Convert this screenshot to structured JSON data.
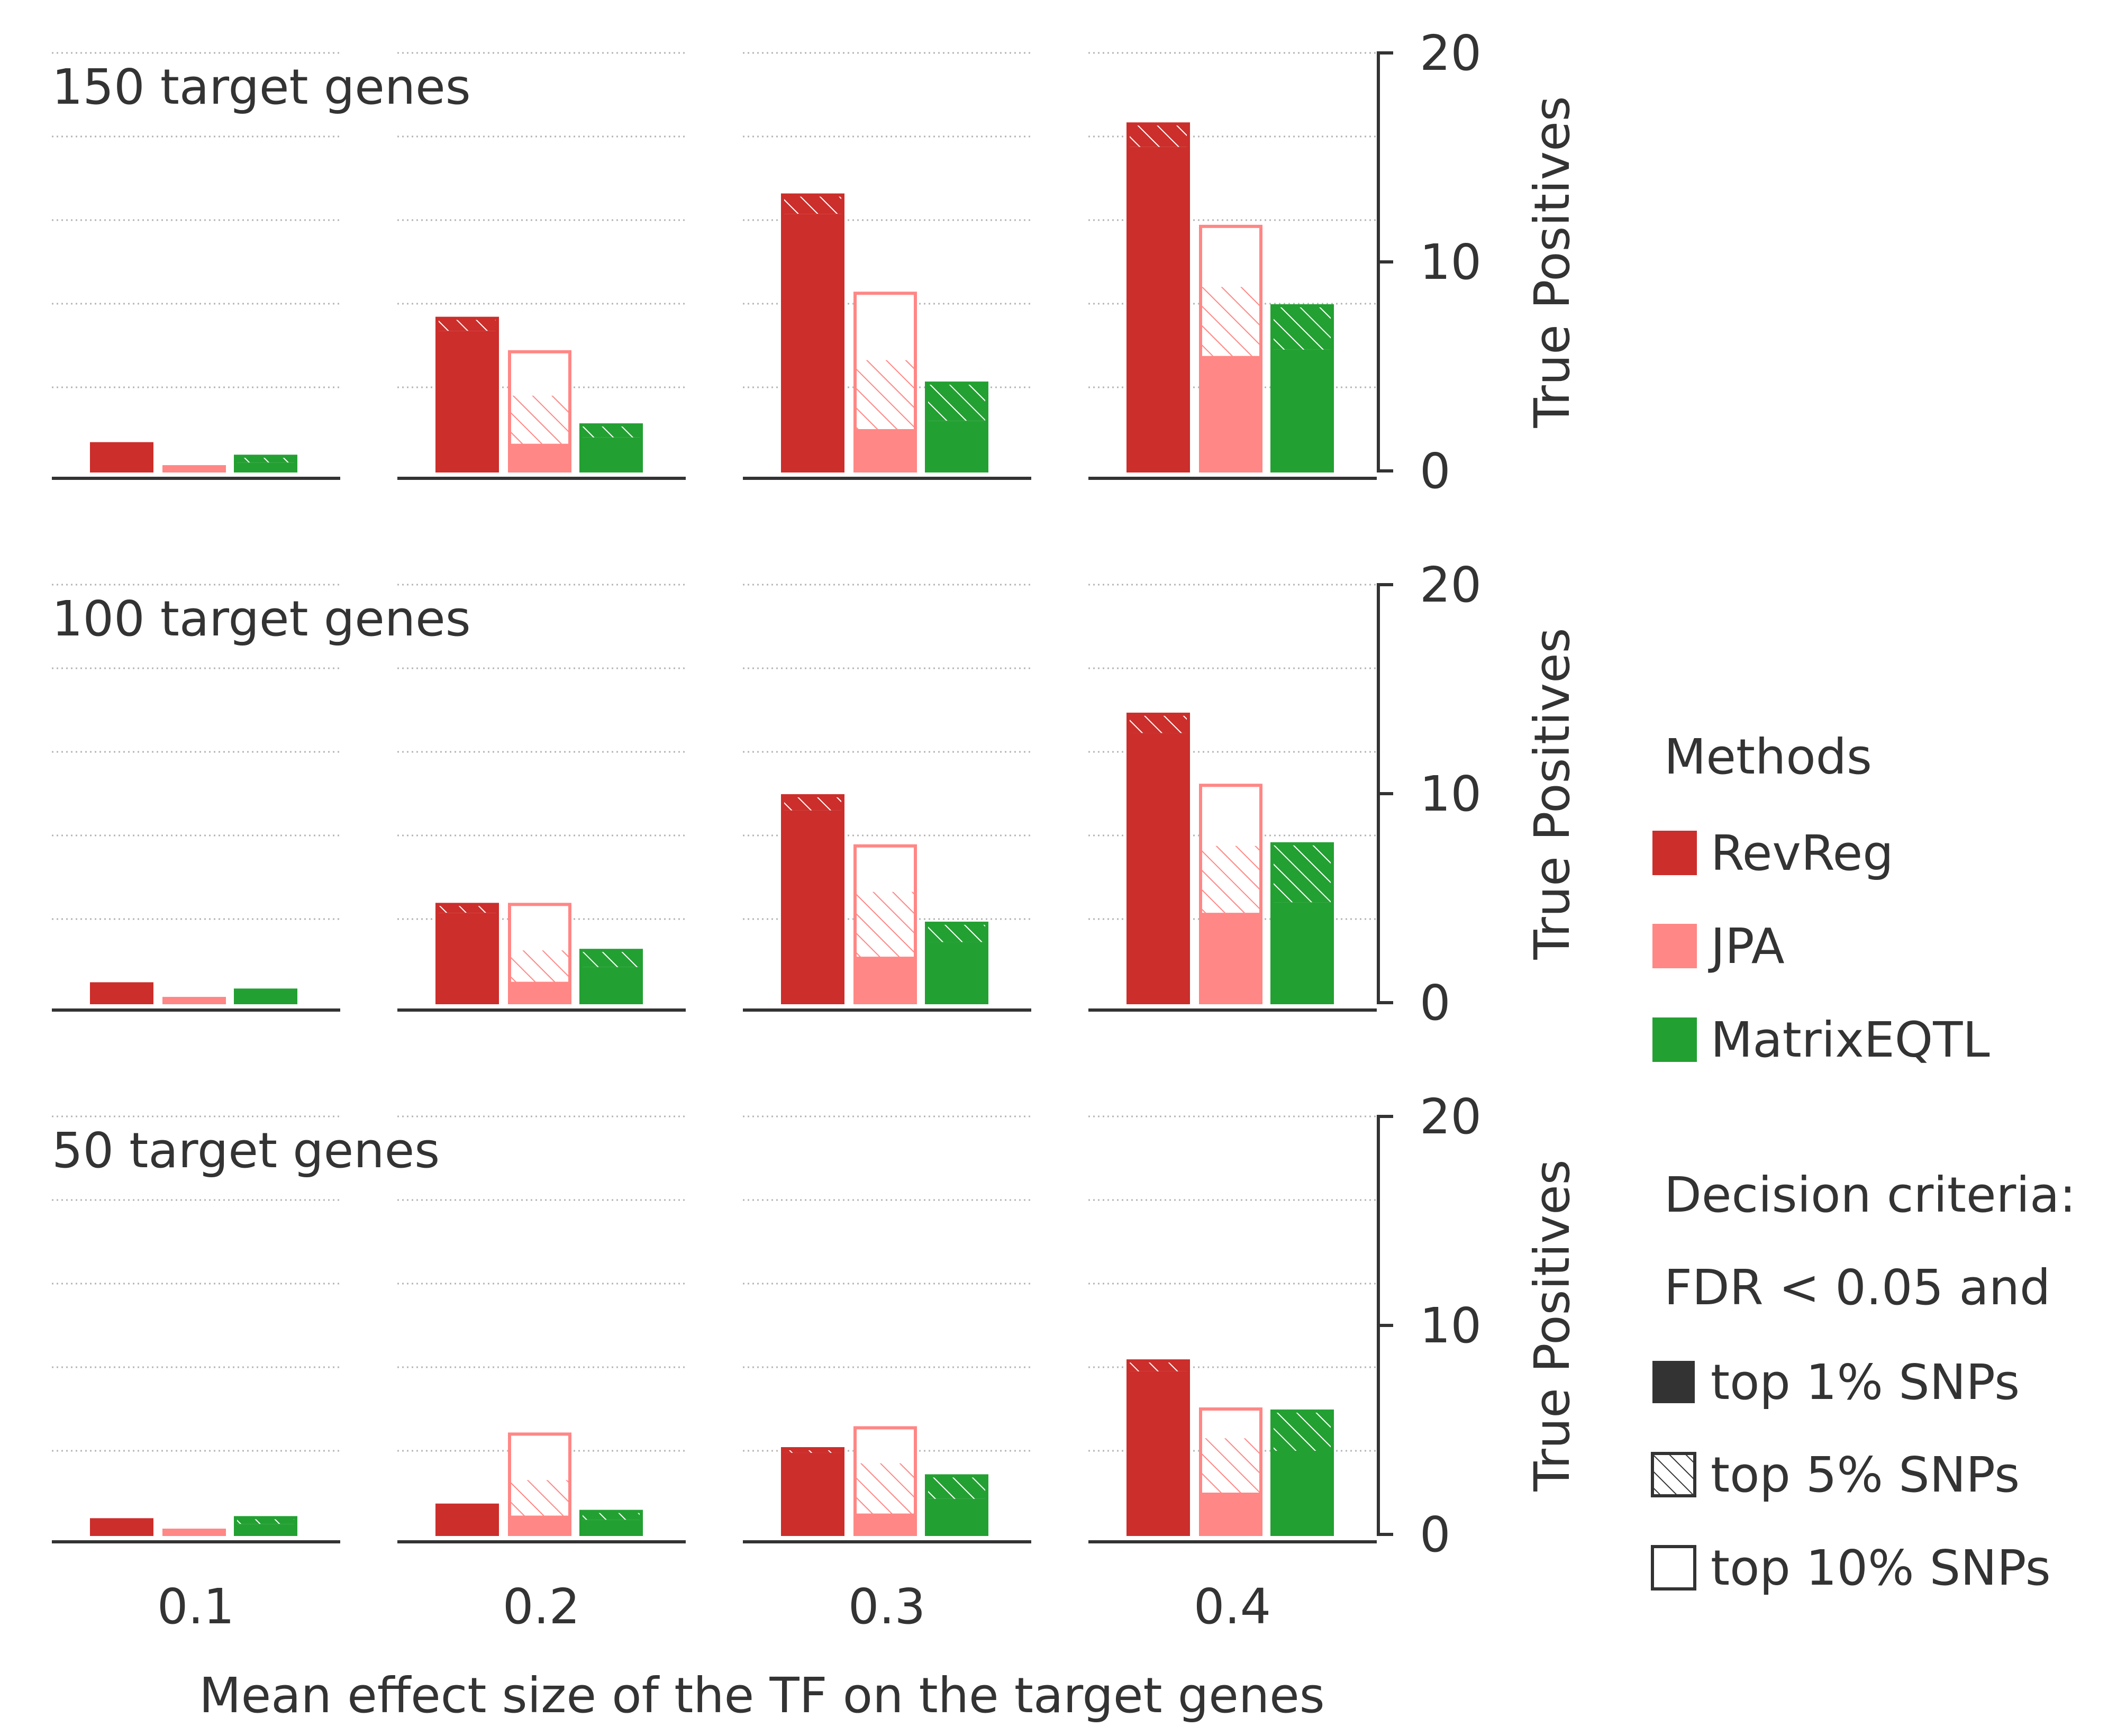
{
  "chart_data": {
    "type": "bar",
    "stacked_criteria": true,
    "x_ticks": [
      "0.1",
      "0.2",
      "0.3",
      "0.4"
    ],
    "xlabel": "Mean effect size of the TF on the target genes",
    "ylabel": "True Positives",
    "ylim": [
      0,
      20
    ],
    "y_ticks": [
      "0",
      "10",
      "20"
    ],
    "grid": "horizontal dotted",
    "colors": {
      "RevReg": "#cc2e2b",
      "JPA": "#ff8785",
      "MatrixEQTL": "#23a032",
      "top1_legend": "#333333"
    },
    "methods": [
      "RevReg",
      "JPA",
      "MatrixEQTL"
    ],
    "panels": [
      {
        "label": "150 target genes",
        "groups": [
          {
            "effect": "0.1",
            "bars": [
              {
                "method": "RevReg",
                "top1": 1.3,
                "top5": 1.3,
                "top10": 1.3
              },
              {
                "method": "JPA",
                "top1": 0.2,
                "top5": 0.2,
                "top10": 0.2
              },
              {
                "method": "MatrixEQTL",
                "top1": 0.4,
                "top5": 0.7,
                "top10": 0.7
              }
            ]
          },
          {
            "effect": "0.2",
            "bars": [
              {
                "method": "RevReg",
                "top1": 6.7,
                "top5": 7.3,
                "top10": 7.3
              },
              {
                "method": "JPA",
                "top1": 1.3,
                "top5": 3.6,
                "top10": 5.7
              },
              {
                "method": "MatrixEQTL",
                "top1": 1.6,
                "top5": 2.2,
                "top10": 2.2
              }
            ]
          },
          {
            "effect": "0.3",
            "bars": [
              {
                "method": "RevReg",
                "top1": 12.3,
                "top5": 13.2,
                "top10": 13.2
              },
              {
                "method": "JPA",
                "top1": 2.0,
                "top5": 5.3,
                "top10": 8.5
              },
              {
                "method": "MatrixEQTL",
                "top1": 2.4,
                "top5": 4.2,
                "top10": 4.2
              }
            ]
          },
          {
            "effect": "0.4",
            "bars": [
              {
                "method": "RevReg",
                "top1": 15.5,
                "top5": 16.6,
                "top10": 16.6
              },
              {
                "method": "JPA",
                "top1": 5.5,
                "top5": 8.8,
                "top10": 11.7
              },
              {
                "method": "MatrixEQTL",
                "top1": 5.8,
                "top5": 7.9,
                "top10": 7.9
              }
            ]
          }
        ]
      },
      {
        "label": "100 target genes",
        "groups": [
          {
            "effect": "0.1",
            "bars": [
              {
                "method": "RevReg",
                "top1": 0.9,
                "top5": 0.9,
                "top10": 0.9
              },
              {
                "method": "JPA",
                "top1": 0.2,
                "top5": 0.2,
                "top10": 0.2
              },
              {
                "method": "MatrixEQTL",
                "top1": 0.6,
                "top5": 0.6,
                "top10": 0.6
              }
            ]
          },
          {
            "effect": "0.2",
            "bars": [
              {
                "method": "RevReg",
                "top1": 4.3,
                "top5": 4.7,
                "top10": 4.7
              },
              {
                "method": "JPA",
                "top1": 1.0,
                "top5": 2.5,
                "top10": 4.7
              },
              {
                "method": "MatrixEQTL",
                "top1": 1.7,
                "top5": 2.5,
                "top10": 2.5
              }
            ]
          },
          {
            "effect": "0.3",
            "bars": [
              {
                "method": "RevReg",
                "top1": 9.2,
                "top5": 9.9,
                "top10": 9.9
              },
              {
                "method": "JPA",
                "top1": 2.2,
                "top5": 5.3,
                "top10": 7.5
              },
              {
                "method": "MatrixEQTL",
                "top1": 2.9,
                "top5": 3.8,
                "top10": 3.8
              }
            ]
          },
          {
            "effect": "0.4",
            "bars": [
              {
                "method": "RevReg",
                "top1": 12.9,
                "top5": 13.8,
                "top10": 13.8
              },
              {
                "method": "JPA",
                "top1": 4.3,
                "top5": 7.5,
                "top10": 10.4
              },
              {
                "method": "MatrixEQTL",
                "top1": 4.8,
                "top5": 7.6,
                "top10": 7.6
              }
            ]
          }
        ]
      },
      {
        "label": "50 target genes",
        "groups": [
          {
            "effect": "0.1",
            "bars": [
              {
                "method": "RevReg",
                "top1": 0.7,
                "top5": 0.7,
                "top10": 0.7
              },
              {
                "method": "JPA",
                "top1": 0.2,
                "top5": 0.2,
                "top10": 0.2
              },
              {
                "method": "MatrixEQTL",
                "top1": 0.5,
                "top5": 0.8,
                "top10": 0.8
              }
            ]
          },
          {
            "effect": "0.2",
            "bars": [
              {
                "method": "RevReg",
                "top1": 1.4,
                "top5": 1.4,
                "top10": 1.4
              },
              {
                "method": "JPA",
                "top1": 0.9,
                "top5": 2.6,
                "top10": 4.8
              },
              {
                "method": "MatrixEQTL",
                "top1": 0.7,
                "top5": 1.1,
                "top10": 1.1
              }
            ]
          },
          {
            "effect": "0.3",
            "bars": [
              {
                "method": "RevReg",
                "top1": 3.9,
                "top5": 4.1,
                "top10": 4.1
              },
              {
                "method": "JPA",
                "top1": 1.0,
                "top5": 3.4,
                "top10": 5.1
              },
              {
                "method": "MatrixEQTL",
                "top1": 1.7,
                "top5": 2.8,
                "top10": 2.8
              }
            ]
          },
          {
            "effect": "0.4",
            "bars": [
              {
                "method": "RevReg",
                "top1": 7.8,
                "top5": 8.3,
                "top10": 8.3
              },
              {
                "method": "JPA",
                "top1": 2.0,
                "top5": 4.6,
                "top10": 6.0
              },
              {
                "method": "MatrixEQTL",
                "top1": 4.0,
                "top5": 5.9,
                "top10": 5.9
              }
            ]
          }
        ]
      }
    ],
    "legend": {
      "placement": "right",
      "methods_title": "Methods",
      "criteria_title_line1": "Decision criteria:",
      "criteria_title_line2": "FDR < 0.05 and",
      "criteria": [
        {
          "key": "top1",
          "label": "top 1% SNPs",
          "style": "solid"
        },
        {
          "key": "top5",
          "label": "top 5% SNPs",
          "style": "hatched"
        },
        {
          "key": "top10",
          "label": "top 10% SNPs",
          "style": "outline"
        }
      ]
    }
  }
}
